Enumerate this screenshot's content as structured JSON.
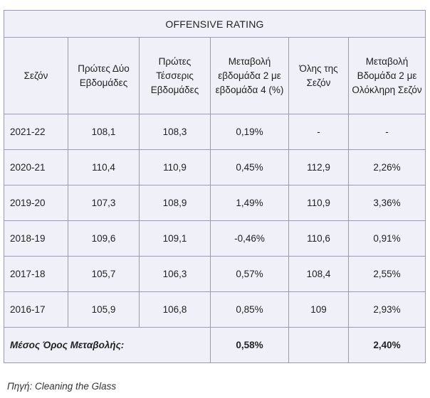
{
  "table": {
    "title": "OFFENSIVE RATING",
    "headers": [
      "Σεζόν",
      "Πρώτες Δύο Εβδομάδες",
      "Πρώτες Τέσσερις Εβδομάδες",
      "Μεταβολή εβδομάδα 2 με εβδομάδα 4 (%)",
      "Όλης της Σεζόν",
      "Μεταβολή Βδομάδα 2 με Ολόκληρη Σεζόν"
    ],
    "rows": [
      {
        "season": "2021-22",
        "two_weeks": "108,1",
        "four_weeks": "108,3",
        "change_2_4": "0,19%",
        "full_season": "-",
        "change_2_full": "-"
      },
      {
        "season": "2020-21",
        "two_weeks": "110,4",
        "four_weeks": "110,9",
        "change_2_4": "0,45%",
        "full_season": "112,9",
        "change_2_full": "2,26%"
      },
      {
        "season": "2019-20",
        "two_weeks": "107,3",
        "four_weeks": "108,9",
        "change_2_4": "1,49%",
        "full_season": "110,9",
        "change_2_full": "3,36%"
      },
      {
        "season": "2018-19",
        "two_weeks": "109,6",
        "four_weeks": "109,1",
        "change_2_4": "-0,46%",
        "full_season": "110,6",
        "change_2_full": "0,91%"
      },
      {
        "season": "2017-18",
        "two_weeks": "105,7",
        "four_weeks": "106,3",
        "change_2_4": "0,57%",
        "full_season": "108,4",
        "change_2_full": "2,55%"
      },
      {
        "season": "2016-17",
        "two_weeks": "105,9",
        "four_weeks": "106,8",
        "change_2_4": "0,85%",
        "full_season": "109",
        "change_2_full": "2,93%"
      }
    ],
    "average": {
      "label": "Μέσος Όρος Μεταβολής:",
      "change_2_4": "0,58%",
      "change_2_full": "2,40%"
    }
  },
  "source": "Πηγή: Cleaning the Glass"
}
